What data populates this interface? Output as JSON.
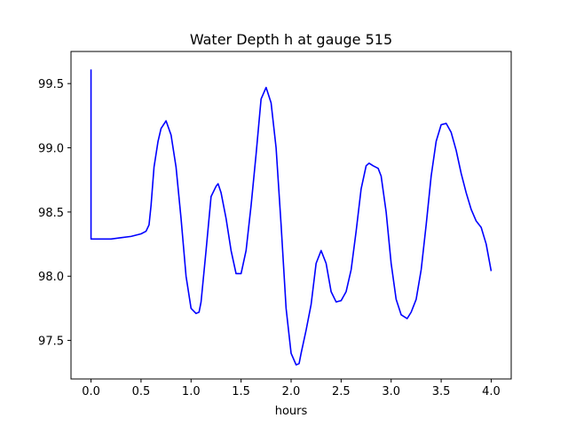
{
  "chart_data": {
    "type": "line",
    "title": "Water Depth h at gauge 515",
    "xlabel": "hours",
    "ylabel": "",
    "xlim": [
      -0.2,
      4.2
    ],
    "ylim": [
      97.2,
      99.75
    ],
    "x_ticks": [
      0.0,
      0.5,
      1.0,
      1.5,
      2.0,
      2.5,
      3.0,
      3.5,
      4.0
    ],
    "x_tick_labels": [
      "0.0",
      "0.5",
      "1.0",
      "1.5",
      "2.0",
      "2.5",
      "3.0",
      "3.5",
      "4.0"
    ],
    "y_ticks": [
      97.5,
      98.0,
      98.5,
      99.0,
      99.5
    ],
    "y_tick_labels": [
      "97.5",
      "98.0",
      "98.5",
      "99.0",
      "99.5"
    ],
    "grid": false,
    "series": [
      {
        "color": "#0000ff",
        "x": [
          0.0,
          0.0,
          0.05,
          0.2,
          0.3,
          0.4,
          0.5,
          0.55,
          0.58,
          0.6,
          0.63,
          0.67,
          0.7,
          0.75,
          0.8,
          0.85,
          0.9,
          0.95,
          1.0,
          1.05,
          1.08,
          1.1,
          1.15,
          1.2,
          1.25,
          1.27,
          1.3,
          1.35,
          1.4,
          1.45,
          1.5,
          1.55,
          1.6,
          1.65,
          1.7,
          1.75,
          1.8,
          1.85,
          1.9,
          1.95,
          2.0,
          2.05,
          2.08,
          2.1,
          2.15,
          2.2,
          2.25,
          2.3,
          2.35,
          2.4,
          2.45,
          2.5,
          2.55,
          2.6,
          2.65,
          2.7,
          2.75,
          2.78,
          2.82,
          2.87,
          2.9,
          2.95,
          3.0,
          3.05,
          3.1,
          3.16,
          3.2,
          3.25,
          3.3,
          3.35,
          3.4,
          3.45,
          3.5,
          3.55,
          3.6,
          3.65,
          3.7,
          3.75,
          3.8,
          3.85,
          3.9,
          3.95,
          4.0
        ],
        "y": [
          99.61,
          98.29,
          98.29,
          98.29,
          98.3,
          98.31,
          98.33,
          98.35,
          98.4,
          98.55,
          98.85,
          99.05,
          99.15,
          99.21,
          99.1,
          98.85,
          98.45,
          98.0,
          97.75,
          97.71,
          97.72,
          97.8,
          98.2,
          98.62,
          98.7,
          98.72,
          98.65,
          98.45,
          98.2,
          98.02,
          98.02,
          98.2,
          98.55,
          98.95,
          99.38,
          99.47,
          99.35,
          99.0,
          98.4,
          97.75,
          97.4,
          97.31,
          97.32,
          97.4,
          97.58,
          97.78,
          98.1,
          98.2,
          98.1,
          97.88,
          97.8,
          97.81,
          97.88,
          98.05,
          98.35,
          98.68,
          98.86,
          98.88,
          98.86,
          98.84,
          98.78,
          98.5,
          98.1,
          97.82,
          97.7,
          97.67,
          97.72,
          97.82,
          98.05,
          98.4,
          98.78,
          99.05,
          99.18,
          99.19,
          99.12,
          98.98,
          98.8,
          98.65,
          98.52,
          98.43,
          98.38,
          98.25,
          98.04
        ]
      }
    ]
  }
}
